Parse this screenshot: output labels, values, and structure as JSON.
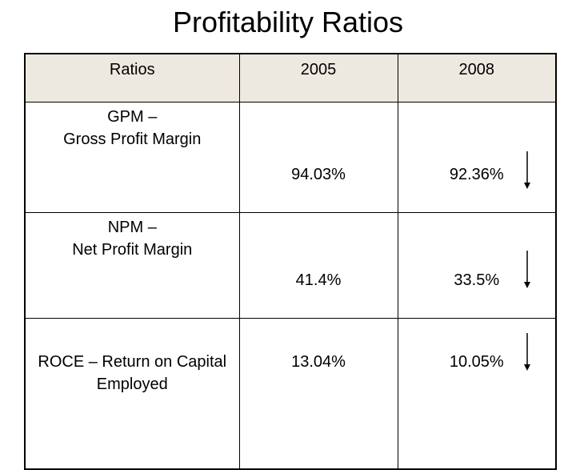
{
  "title": "Profitability Ratios",
  "table": {
    "headers": [
      "Ratios",
      "2005",
      "2008"
    ],
    "rows": [
      {
        "name_line1": "GPM –",
        "name_line2": "Gross Profit Margin",
        "v2005": "94.03%",
        "v2008": "92.36%",
        "trend_icon": "down-arrow-icon"
      },
      {
        "name_line1": "NPM –",
        "name_line2": "Net Profit Margin",
        "v2005": "41.4%",
        "v2008": "33.5%",
        "trend_icon": "down-arrow-icon"
      },
      {
        "name_line1": "ROCE – Return on Capital",
        "name_line2": "Employed",
        "v2005": "13.04%",
        "v2008": "10.05%",
        "trend_icon": "down-arrow-icon"
      }
    ]
  }
}
